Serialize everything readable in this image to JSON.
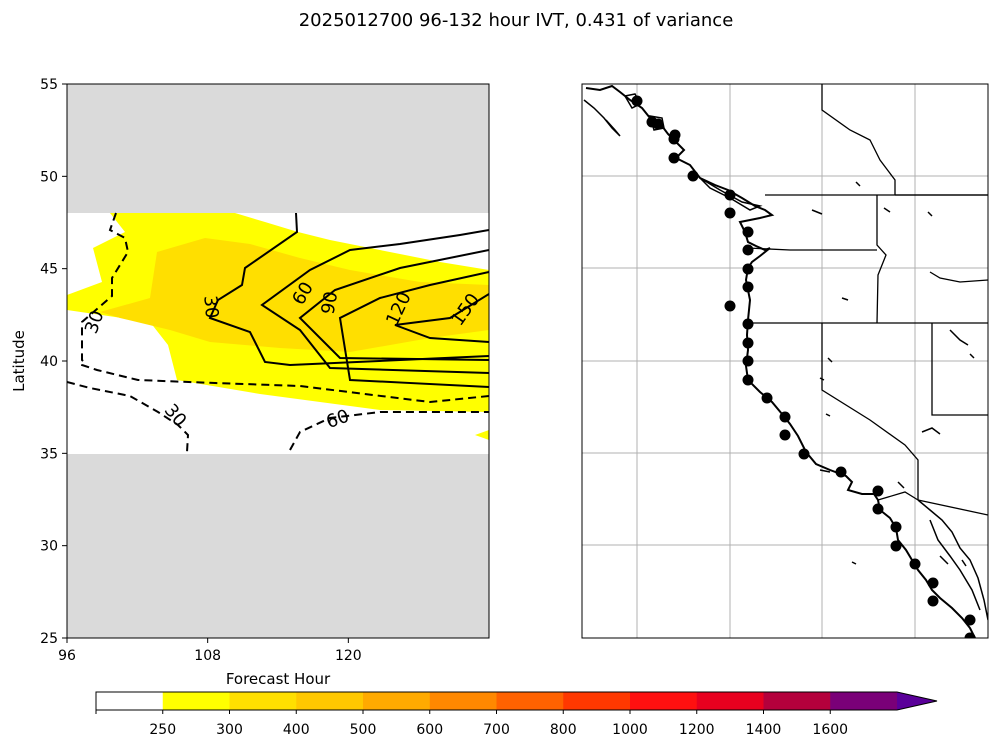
{
  "figure": {
    "title": "2025012700 96-132 hour IVT, 0.431 of variance"
  },
  "chart_data": [
    {
      "type": "contour",
      "panel": "left",
      "xlabel": "Forecast Hour",
      "ylabel": "Latitude",
      "xlim": [
        96,
        132
      ],
      "ylim": [
        25,
        55
      ],
      "xticks": [
        96,
        108,
        120
      ],
      "yticks": [
        25,
        30,
        35,
        40,
        45,
        50,
        55
      ],
      "colors": {
        "no_data": "#dadada",
        "fill_250_300": "#ffff00",
        "fill_300_400": "#ffdf00"
      },
      "contour_labels": [
        {
          "text": "30",
          "sign": "positive"
        },
        {
          "text": "60",
          "sign": "positive"
        },
        {
          "text": "90",
          "sign": "positive"
        },
        {
          "text": "120",
          "sign": "positive"
        },
        {
          "text": "150",
          "sign": "positive"
        },
        {
          "text": "30",
          "sign": "negative"
        },
        {
          "text": "30",
          "sign": "negative"
        },
        {
          "text": "60",
          "sign": "negative"
        }
      ]
    },
    {
      "type": "map",
      "panel": "right",
      "description_free": true,
      "points_count": 32,
      "marker": "filled circle"
    }
  ],
  "colorbar": {
    "ticks": [
      "250",
      "300",
      "400",
      "500",
      "600",
      "700",
      "800",
      "1000",
      "1200",
      "1400",
      "1600"
    ],
    "colors": [
      "#ffffff",
      "#ffff00",
      "#ffdf00",
      "#ffc800",
      "#ffaa00",
      "#ff8800",
      "#ff6200",
      "#ff3800",
      "#ff1010",
      "#e8001f",
      "#b4003c",
      "#7a0078",
      "#5a0099"
    ]
  }
}
